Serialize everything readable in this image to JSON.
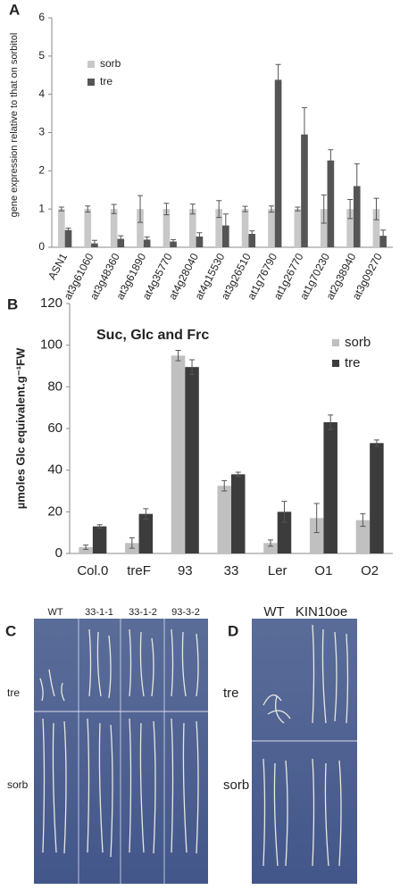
{
  "chart_data": [
    {
      "type": "bar",
      "label": "A",
      "y_label": "gene expression relative to that on sorbitol",
      "categories": [
        "ASN1",
        "at3g61060",
        "at3g48360",
        "at3g61890",
        "at4g35770",
        "at4g28040",
        "at4g15530",
        "at3g26510",
        "at1g76790",
        "at1g26770",
        "at1g70230",
        "at2g38940",
        "at3g09270"
      ],
      "series": [
        {
          "name": "sorb",
          "color": "#c8c8c8",
          "values": [
            1,
            1,
            1,
            1,
            1,
            1,
            1,
            1,
            1,
            1,
            1,
            1,
            1
          ],
          "errors": [
            0.05,
            0.08,
            0.12,
            0.35,
            0.15,
            0.13,
            0.22,
            0.07,
            0.08,
            0.05,
            0.37,
            0.25,
            0.28
          ]
        },
        {
          "name": "tre",
          "color": "#555555",
          "values": [
            0.45,
            0.1,
            0.22,
            0.2,
            0.15,
            0.28,
            0.57,
            0.35,
            4.38,
            2.95,
            2.27,
            1.6,
            0.3
          ],
          "errors": [
            0.05,
            0.08,
            0.08,
            0.07,
            0.05,
            0.1,
            0.3,
            0.08,
            0.4,
            0.7,
            0.28,
            0.58,
            0.15
          ]
        }
      ],
      "ylim": [
        0,
        6
      ],
      "yticks": [
        0,
        1,
        2,
        3,
        4,
        5,
        6
      ],
      "legend": "upper left"
    },
    {
      "type": "bar",
      "label": "B",
      "title": "Suc, Glc and Frc",
      "y_label": "µmoles Glc equivalent.g⁻¹FW",
      "categories": [
        "Col.0",
        "treF",
        "93",
        "33",
        "Ler",
        "O1",
        "O2"
      ],
      "series": [
        {
          "name": "sorb",
          "color": "#c0c0c0",
          "values": [
            3,
            5,
            95,
            32.5,
            5,
            17,
            16
          ],
          "errors": [
            1,
            2.5,
            2.5,
            2.5,
            1.5,
            7,
            3
          ]
        },
        {
          "name": "tre",
          "color": "#3c3c3c",
          "values": [
            13,
            19,
            89.5,
            38,
            20,
            63,
            53
          ],
          "errors": [
            0.8,
            2.5,
            3.5,
            1,
            5,
            3.5,
            1.5
          ]
        }
      ],
      "ylim": [
        0,
        120
      ],
      "yticks": [
        0,
        20,
        40,
        60,
        80,
        100,
        120
      ],
      "legend": "upper right"
    }
  ],
  "photos": [
    {
      "label": "C",
      "columns": [
        "WT",
        "33-1-1",
        "33-1-2",
        "93-3-2"
      ],
      "rows": [
        "tre",
        "sorb"
      ]
    },
    {
      "label": "D",
      "columns": [
        "WT",
        "KIN10oe"
      ],
      "rows": [
        "tre",
        "sorb"
      ]
    }
  ]
}
